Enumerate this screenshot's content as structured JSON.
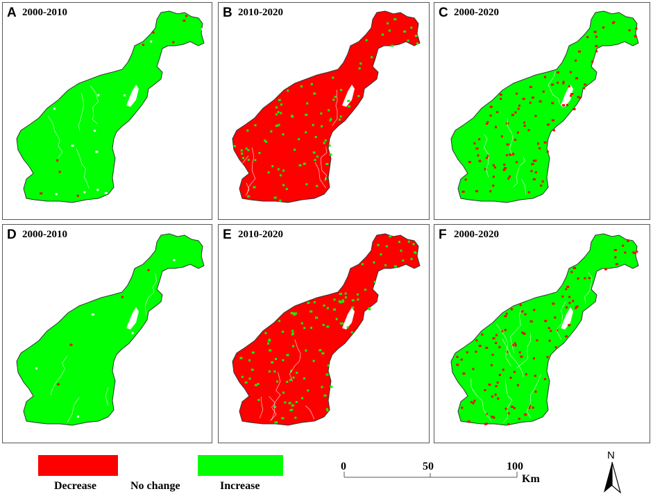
{
  "panels": [
    {
      "letter": "A",
      "period": "2000-2010",
      "base": "#00ff00",
      "spots": "#ff0000",
      "spot_density": "low"
    },
    {
      "letter": "B",
      "period": "2010-2020",
      "base": "#ff0000",
      "spots": "#00ff00",
      "spot_density": "medium"
    },
    {
      "letter": "C",
      "period": "2000-2020",
      "base": "#00ff00",
      "spots": "#ff0000",
      "spot_density": "medium"
    },
    {
      "letter": "D",
      "period": "2000-2010",
      "base": "#00ff00",
      "spots": "#ff0000",
      "spot_density": "low"
    },
    {
      "letter": "E",
      "period": "2010-2020",
      "base": "#ff0000",
      "spots": "#00ff00",
      "spot_density": "medium"
    },
    {
      "letter": "F",
      "period": "2000-2020",
      "base": "#00ff00",
      "spots": "#ff0000",
      "spot_density": "medium"
    }
  ],
  "legend": [
    {
      "label": "Decrease",
      "color": "#ff0000"
    },
    {
      "label": "No change",
      "color": "#ffffff"
    },
    {
      "label": "Increase",
      "color": "#00ff00"
    }
  ],
  "scale_bar": {
    "ticks": [
      "0",
      "50",
      "100"
    ],
    "unit": "Km"
  },
  "north_arrow": {
    "label": "N"
  }
}
